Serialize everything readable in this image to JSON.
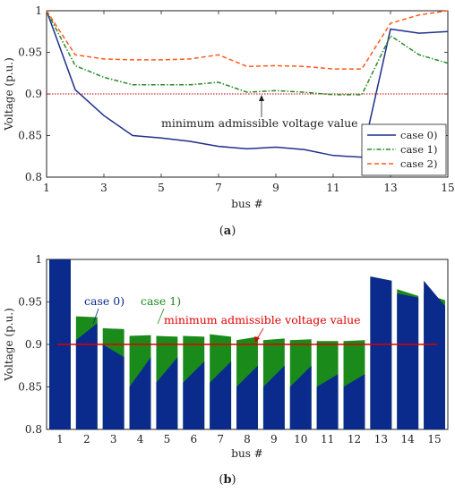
{
  "chart_data": [
    {
      "type": "line",
      "caption": "(a)",
      "xlabel": "bus #",
      "ylabel": "Voltage (p.u.)",
      "xlim": [
        1,
        15
      ],
      "ylim": [
        0.8,
        1.0
      ],
      "xticks": [
        "1",
        "3",
        "5",
        "7",
        "9",
        "11",
        "13",
        "15"
      ],
      "yticks": [
        "0.8",
        "0.85",
        "0.9",
        "0.95",
        "1"
      ],
      "x": [
        1,
        2,
        3,
        4,
        5,
        6,
        7,
        8,
        9,
        10,
        11,
        12,
        13,
        14,
        15
      ],
      "series": [
        {
          "name": "case 0)",
          "color": "#1f2f8c",
          "dash": "solid",
          "values": [
            1.0,
            0.905,
            0.874,
            0.85,
            0.847,
            0.843,
            0.837,
            0.834,
            0.836,
            0.833,
            0.826,
            0.824,
            0.978,
            0.973,
            0.975
          ]
        },
        {
          "name": "case 1)",
          "color": "#2a8a2a",
          "dash": "dashdot",
          "values": [
            1.0,
            0.934,
            0.92,
            0.911,
            0.911,
            0.911,
            0.914,
            0.902,
            0.904,
            0.902,
            0.899,
            0.899,
            0.97,
            0.947,
            0.937
          ]
        },
        {
          "name": "case 2)",
          "color": "#ff5a1a",
          "dash": "dashed",
          "values": [
            1.0,
            0.947,
            0.942,
            0.941,
            0.941,
            0.942,
            0.947,
            0.933,
            0.934,
            0.933,
            0.93,
            0.93,
            0.985,
            0.995,
            1.004
          ]
        }
      ],
      "reference_line": {
        "value": 0.9,
        "color": "#c00000",
        "style": "dotted"
      },
      "annotation": "minimum admissible voltage value",
      "legend_position": "bottom-right",
      "grid": false
    },
    {
      "type": "area",
      "caption": "(b)",
      "xlabel": "bus #",
      "ylabel": "Voltage (p.u.)",
      "ylim": [
        0.8,
        1.0
      ],
      "categories": [
        "1",
        "2",
        "3",
        "4",
        "5",
        "6",
        "7",
        "8",
        "9",
        "10",
        "11",
        "12",
        "13",
        "14",
        "15"
      ],
      "yticks": [
        "0.8",
        "0.85",
        "0.9",
        "0.95",
        "1"
      ],
      "series": [
        {
          "name": "case 0)",
          "color": "#0a2a8c",
          "start": [
            1.0,
            0.905,
            0.9,
            0.85,
            0.855,
            0.855,
            0.855,
            0.85,
            0.85,
            0.85,
            0.85,
            0.85,
            0.98,
            0.96,
            0.975
          ],
          "end": [
            1.0,
            0.925,
            0.885,
            0.885,
            0.885,
            0.88,
            0.88,
            0.875,
            0.875,
            0.875,
            0.865,
            0.865,
            0.975,
            0.955,
            0.945
          ]
        },
        {
          "name": "case 1)",
          "color": "#1a8a1a",
          "start": [
            1.0,
            0.933,
            0.919,
            0.91,
            0.91,
            0.91,
            0.912,
            0.905,
            0.905,
            0.905,
            0.904,
            0.904,
            0.977,
            0.965,
            0.96
          ],
          "end": [
            1.0,
            0.932,
            0.918,
            0.911,
            0.909,
            0.909,
            0.909,
            0.909,
            0.907,
            0.906,
            0.904,
            0.905,
            0.975,
            0.957,
            0.952
          ]
        }
      ],
      "reference_line": {
        "value": 0.9,
        "color": "#e00000",
        "style": "solid"
      },
      "annotation": "minimum admissible voltage value",
      "case_labels": [
        "case 0)",
        "case 1)"
      ]
    }
  ]
}
